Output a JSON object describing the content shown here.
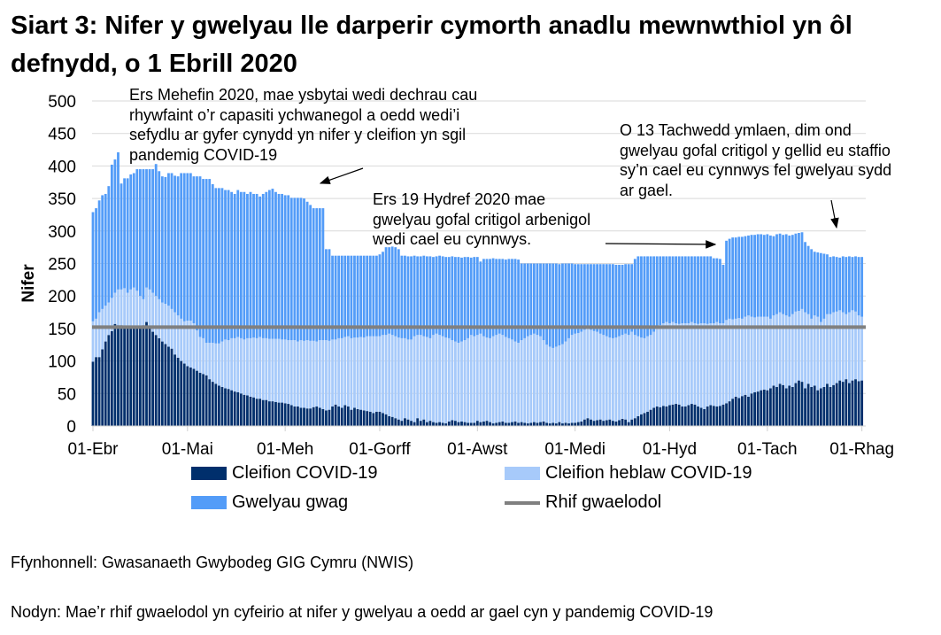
{
  "title": "Siart 3: Nifer y gwelyau lle darperir cymorth anadlu mewnwthiol yn ôl defnydd, o 1 Ebrill 2020",
  "annotations": [
    "Ers Mehefin 2020, mae ysbytai wedi dechrau cau\nrhywfaint o’r capasiti ychwanegol a oedd wedi’i\nsefydlu ar gyfer cynydd yn nifer y cleifion yn sgil\npandemig COVID-19",
    "Ers 19 Hydref 2020 mae\ngwelyau gofal critigol arbenigol\nwedi cael eu cynnwys.",
    "O 13 Tachwedd ymlaen, dim ond\ngwelyau gofal critigol y gellid eu staffio\nsy’n cael eu cynnwys fel gwelyau sydd\nar gael."
  ],
  "legend": {
    "covid": "Cleifion COVID-19",
    "noncovid": "Cleifion heblaw COVID-19",
    "empty": "Gwelyau gwag",
    "baseline": "Rhif gwaelodol"
  },
  "footer": {
    "source": "Ffynhonnell: Gwasanaeth Gwybodeg GIG Cymru (NWIS)",
    "note": "Nodyn: Mae’r rhif gwaelodol yn cyfeirio at nifer y gwelyau a oedd ar gael cyn y pandemig COVID-19"
  },
  "chart_data": {
    "type": "bar",
    "stacked": true,
    "ylabel": "Nifer",
    "xlabel": "",
    "ylim": [
      0,
      500
    ],
    "yticks": [
      0,
      50,
      100,
      150,
      200,
      250,
      300,
      350,
      400,
      450,
      500
    ],
    "grid": true,
    "legend_position": "bottom",
    "x_start": "2020-04-01",
    "x_end": "2020-12-01",
    "x_interval": "daily",
    "xtick_labels": [
      "01-Ebr",
      "01-Mai",
      "01-Meh",
      "01-Gorff",
      "01-Awst",
      "01-Medi",
      "01-Hyd",
      "01-Tach",
      "01-Rhag"
    ],
    "baseline": 152,
    "colors": {
      "covid": "#002F6C",
      "noncovid": "#A7CAFA",
      "empty": "#539CF8",
      "baseline": "#808080"
    },
    "series": [
      {
        "name": "Cleifion COVID-19",
        "values": [
          99,
          106,
          106,
          118,
          130,
          140,
          146,
          157,
          155,
          155,
          153,
          150,
          152,
          152,
          150,
          152,
          155,
          160,
          150,
          145,
          140,
          135,
          130,
          126,
          122,
          119,
          110,
          105,
          100,
          96,
          92,
          90,
          88,
          85,
          82,
          80,
          78,
          72,
          68,
          65,
          62,
          60,
          58,
          57,
          55,
          53,
          52,
          50,
          48,
          47,
          45,
          44,
          42,
          42,
          40,
          40,
          38,
          38,
          37,
          36,
          36,
          35,
          34,
          32,
          30,
          30,
          28,
          28,
          27,
          27,
          29,
          30,
          28,
          26,
          24,
          25,
          30,
          33,
          30,
          28,
          32,
          30,
          25,
          28,
          26,
          25,
          24,
          23,
          22,
          20,
          22,
          22,
          20,
          18,
          15,
          14,
          12,
          10,
          8,
          12,
          10,
          8,
          6,
          12,
          8,
          10,
          6,
          8,
          6,
          5,
          6,
          5,
          4,
          7,
          9,
          8,
          6,
          7,
          6,
          5,
          5,
          5,
          8,
          6,
          7,
          8,
          6,
          4,
          5,
          6,
          7,
          5,
          5,
          6,
          7,
          5,
          6,
          5,
          4,
          5,
          6,
          5,
          6,
          7,
          5,
          4,
          5,
          4,
          6,
          4,
          5,
          4,
          5,
          5,
          6,
          7,
          10,
          12,
          10,
          8,
          9,
          10,
          8,
          9,
          10,
          8,
          7,
          9,
          11,
          10,
          6,
          10,
          12,
          15,
          18,
          20,
          22,
          25,
          28,
          30,
          29,
          31,
          30,
          32,
          33,
          34,
          33,
          30,
          30,
          32,
          34,
          33,
          30,
          28,
          26,
          30,
          32,
          31,
          30,
          31,
          33,
          35,
          38,
          42,
          45,
          43,
          46,
          48,
          45,
          50,
          52,
          53,
          55,
          56,
          55,
          58,
          62,
          60,
          65,
          63,
          58,
          62,
          60,
          66,
          70,
          68,
          58,
          65,
          60,
          62,
          55,
          58,
          60,
          65,
          60,
          63,
          66,
          70,
          68,
          72,
          66,
          70,
          72,
          69,
          70
        ]
      },
      {
        "name": "Cleifion heblaw COVID-19",
        "values": [
          62,
          59,
          69,
          62,
          55,
          50,
          51,
          48,
          55,
          55,
          59,
          55,
          58,
          61,
          58,
          48,
          40,
          53,
          60,
          60,
          60,
          60,
          60,
          62,
          63,
          61,
          65,
          65,
          65,
          65,
          70,
          72,
          70,
          62,
          55,
          55,
          50,
          56,
          60,
          62,
          65,
          70,
          75,
          75,
          80,
          82,
          85,
          85,
          85,
          88,
          90,
          92,
          93,
          95,
          95,
          95,
          96,
          96,
          97,
          98,
          97,
          98,
          98,
          100,
          102,
          100,
          104,
          103,
          105,
          104,
          102,
          100,
          104,
          106,
          108,
          106,
          103,
          100,
          105,
          107,
          105,
          108,
          110,
          108,
          110,
          112,
          112,
          115,
          116,
          118,
          116,
          116,
          120,
          122,
          127,
          126,
          126,
          126,
          127,
          123,
          123,
          125,
          132,
          128,
          132,
          128,
          131,
          127,
          134,
          137,
          134,
          133,
          132,
          128,
          123,
          122,
          122,
          123,
          126,
          130,
          135,
          133,
          132,
          136,
          131,
          128,
          129,
          134,
          135,
          136,
          133,
          132,
          130,
          127,
          123,
          123,
          126,
          130,
          134,
          135,
          136,
          135,
          132,
          125,
          120,
          118,
          115,
          118,
          118,
          122,
          125,
          131,
          135,
          137,
          137,
          138,
          138,
          138,
          138,
          138,
          136,
          132,
          132,
          129,
          126,
          127,
          129,
          129,
          129,
          132,
          134,
          135,
          128,
          123,
          118,
          115,
          116,
          115,
          117,
          120,
          126,
          127,
          130,
          126,
          127,
          124,
          124,
          128,
          128,
          126,
          126,
          125,
          127,
          130,
          132,
          127,
          126,
          127,
          130,
          127,
          125,
          128,
          127,
          122,
          120,
          123,
          119,
          120,
          125,
          118,
          115,
          115,
          113,
          112,
          113,
          107,
          108,
          112,
          110,
          109,
          112,
          106,
          112,
          110,
          107,
          112,
          117,
          107,
          105,
          108,
          113,
          102,
          105,
          107,
          112,
          112,
          110,
          108,
          107,
          100,
          109,
          108,
          104,
          101,
          98
        ]
      },
      {
        "name": "Gwelyau gwag",
        "values": [
          168,
          170,
          172,
          175,
          172,
          179,
          205,
          205,
          211,
          163,
          169,
          176,
          177,
          176,
          187,
          195,
          200,
          182,
          185,
          190,
          203,
          197,
          194,
          195,
          204,
          209,
          210,
          214,
          224,
          228,
          227,
          227,
          226,
          237,
          247,
          245,
          252,
          252,
          244,
          239,
          239,
          236,
          230,
          231,
          225,
          222,
          226,
          225,
          227,
          222,
          225,
          221,
          222,
          216,
          222,
          225,
          229,
          231,
          226,
          223,
          224,
          222,
          223,
          219,
          219,
          221,
          219,
          219,
          213,
          209,
          204,
          205,
          203,
          203,
          140,
          141,
          129,
          129,
          127,
          127,
          125,
          124,
          127,
          126,
          126,
          125,
          126,
          124,
          124,
          124,
          124,
          126,
          128,
          135,
          133,
          136,
          137,
          136,
          127,
          127,
          128,
          128,
          124,
          121,
          121,
          124,
          124,
          126,
          120,
          119,
          122,
          123,
          124,
          125,
          129,
          130,
          132,
          129,
          128,
          125,
          119,
          122,
          120,
          111,
          119,
          121,
          122,
          120,
          117,
          115,
          117,
          119,
          122,
          124,
          127,
          128,
          118,
          115,
          112,
          110,
          108,
          110,
          112,
          118,
          125,
          128,
          130,
          128,
          125,
          124,
          120,
          115,
          110,
          107,
          106,
          104,
          101,
          99,
          101,
          103,
          104,
          107,
          109,
          111,
          113,
          114,
          112,
          110,
          108,
          107,
          109,
          104,
          117,
          123,
          125,
          126,
          123,
          121,
          116,
          111,
          106,
          103,
          101,
          103,
          101,
          103,
          104,
          103,
          103,
          103,
          101,
          103,
          104,
          103,
          103,
          104,
          103,
          100,
          98,
          99,
          90,
          122,
          123,
          126,
          125,
          125,
          126,
          124,
          123,
          126,
          127,
          127,
          127,
          126,
          127,
          128,
          122,
          123,
          121,
          122,
          125,
          125,
          122,
          120,
          120,
          118,
          108,
          105,
          107,
          98,
          99,
          106,
          100,
          92,
          88,
          86,
          84,
          81,
          86,
          88,
          86,
          82,
          85,
          90,
          92
        ]
      },
      {
        "name": "Rhif gwaelodol",
        "type": "line",
        "value": 152
      }
    ]
  }
}
